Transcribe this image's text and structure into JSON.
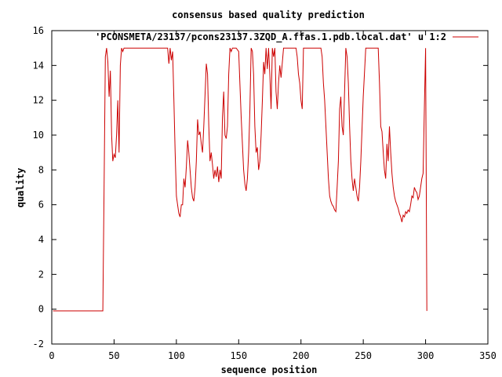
{
  "chart_data": {
    "type": "line",
    "title": "consensus based quality prediction",
    "xlabel": "sequence position",
    "ylabel": "quality",
    "xlim": [
      0,
      350
    ],
    "ylim": [
      -2,
      16
    ],
    "xticks": [
      0,
      50,
      100,
      150,
      200,
      250,
      300,
      350
    ],
    "yticks": [
      -2,
      0,
      2,
      4,
      6,
      8,
      10,
      12,
      14,
      16
    ],
    "grid": false,
    "legend_position": "top-right",
    "line_color": "#cc0000",
    "series": [
      {
        "name": "'PCONSMETA/23137/pcons23137.3ZQD_A.ffas.1.pdb.local.dat' u 1:2",
        "x": [
          1,
          41,
          42,
          43,
          44,
          45,
          46,
          47,
          48,
          49,
          50,
          51,
          52,
          53,
          54,
          55,
          56,
          57,
          58,
          59,
          60,
          65,
          70,
          75,
          80,
          85,
          90,
          93,
          94,
          95,
          96,
          97,
          98,
          99,
          100,
          101,
          102,
          103,
          104,
          105,
          106,
          107,
          108,
          109,
          110,
          111,
          112,
          113,
          114,
          115,
          116,
          117,
          118,
          119,
          120,
          121,
          122,
          123,
          124,
          125,
          126,
          127,
          128,
          129,
          130,
          131,
          132,
          133,
          134,
          135,
          136,
          137,
          138,
          139,
          140,
          141,
          142,
          143,
          144,
          145,
          146,
          147,
          148,
          150,
          152,
          154,
          155,
          156,
          157,
          158,
          159,
          160,
          161,
          162,
          163,
          164,
          165,
          166,
          167,
          168,
          169,
          170,
          171,
          172,
          173,
          174,
          175,
          176,
          177,
          178,
          179,
          180,
          181,
          182,
          183,
          184,
          186,
          188,
          190,
          192,
          194,
          196,
          197,
          198,
          199,
          200,
          201,
          202,
          203,
          204,
          205,
          206,
          207,
          208,
          210,
          212,
          214,
          216,
          217,
          218,
          219,
          220,
          221,
          222,
          223,
          224,
          225,
          226,
          227,
          228,
          229,
          230,
          231,
          232,
          233,
          234,
          235,
          236,
          237,
          238,
          239,
          240,
          241,
          242,
          243,
          244,
          245,
          246,
          247,
          248,
          250,
          252,
          254,
          256,
          258,
          259,
          260,
          261,
          262,
          263,
          264,
          265,
          266,
          267,
          268,
          269,
          270,
          271,
          272,
          273,
          274,
          275,
          276,
          277,
          278,
          279,
          280,
          281,
          282,
          283,
          284,
          285,
          286,
          287,
          288,
          289,
          290,
          291,
          292,
          293,
          294,
          295,
          296,
          297,
          298,
          299,
          300,
          301
        ],
        "y": [
          -0.1,
          -0.1,
          7.0,
          14.5,
          15.0,
          14.2,
          12.2,
          13.7,
          10.0,
          8.5,
          8.9,
          8.7,
          10.0,
          12.0,
          9.0,
          14.0,
          15.0,
          14.8,
          15.0,
          15.0,
          15.0,
          15.0,
          15.0,
          15.0,
          15.0,
          15.0,
          15.0,
          15.0,
          14.1,
          15.0,
          14.3,
          14.8,
          12.0,
          9.0,
          6.5,
          6.0,
          5.5,
          5.3,
          6.0,
          6.0,
          7.5,
          7.0,
          8.2,
          9.7,
          9.0,
          8.0,
          7.0,
          6.4,
          6.2,
          7.0,
          8.5,
          10.9,
          10.0,
          10.2,
          9.5,
          9.0,
          10.5,
          12.3,
          14.1,
          13.5,
          10.5,
          8.5,
          9.0,
          8.3,
          7.5,
          8.0,
          7.6,
          8.2,
          7.3,
          8.0,
          7.5,
          11.0,
          12.5,
          10.0,
          9.8,
          10.5,
          13.5,
          15.0,
          14.8,
          15.0,
          15.0,
          15.0,
          15.0,
          14.8,
          11.0,
          8.0,
          7.2,
          6.8,
          7.5,
          9.0,
          11.5,
          15.0,
          14.8,
          13.5,
          10.5,
          9.0,
          9.3,
          8.0,
          8.5,
          10.0,
          12.0,
          14.2,
          13.5,
          15.0,
          13.8,
          15.0,
          13.5,
          11.5,
          15.0,
          14.5,
          15.0,
          12.5,
          11.5,
          13.0,
          14.0,
          13.3,
          15.0,
          15.0,
          15.0,
          15.0,
          15.0,
          15.0,
          14.5,
          13.5,
          13.0,
          12.0,
          11.5,
          15.0,
          15.0,
          15.0,
          15.0,
          15.0,
          15.0,
          15.0,
          15.0,
          15.0,
          15.0,
          15.0,
          14.5,
          13.0,
          12.0,
          10.5,
          9.0,
          7.5,
          6.5,
          6.2,
          6.0,
          5.9,
          5.7,
          5.6,
          7.0,
          8.5,
          11.5,
          12.2,
          10.5,
          10.0,
          12.5,
          15.0,
          14.5,
          13.0,
          10.5,
          8.5,
          7.5,
          6.8,
          7.5,
          7.0,
          6.5,
          6.2,
          7.0,
          8.5,
          12.2,
          15.0,
          15.0,
          15.0,
          15.0,
          15.0,
          15.0,
          15.0,
          15.0,
          13.0,
          10.5,
          10.2,
          9.0,
          8.0,
          7.5,
          9.5,
          8.5,
          10.5,
          9.0,
          7.8,
          7.0,
          6.5,
          6.2,
          6.0,
          5.8,
          5.5,
          5.3,
          5.0,
          5.4,
          5.3,
          5.6,
          5.5,
          5.7,
          5.6,
          6.0,
          6.5,
          6.4,
          7.0,
          6.8,
          6.7,
          6.3,
          6.5,
          7.0,
          7.5,
          7.8,
          11.5,
          15.0,
          -0.1
        ]
      }
    ]
  }
}
